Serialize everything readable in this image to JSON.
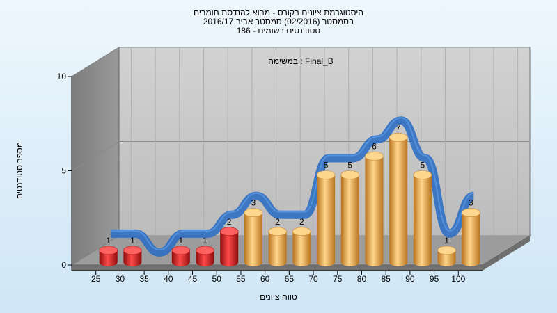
{
  "title": {
    "line1": "היסטוגרמת ציונים בקורס - מבוא להנדסת חומרים",
    "line2": "בסמסטר  (02/2016)  סמסטר אביב 2016/17",
    "line3": "סטודנטים רשומים - 186"
  },
  "chart_data": {
    "type": "bar",
    "title": "היסטוגרמת ציונים בקורס - מבוא להנדסת חומרים",
    "annotation": "במשימה : Final_B",
    "xlabel": "טווח ציונים",
    "ylabel": "מספר סטודנטים",
    "ylim": [
      0,
      10
    ],
    "yticks": [
      "0",
      "5",
      "10"
    ],
    "categories": [
      "25",
      "30",
      "35",
      "40",
      "45",
      "50",
      "55",
      "60",
      "65",
      "70",
      "75",
      "80",
      "85",
      "90",
      "95",
      "100"
    ],
    "values": [
      1,
      1,
      0,
      1,
      1,
      2,
      3,
      2,
      2,
      5,
      5,
      6,
      7,
      5,
      1,
      3
    ],
    "bar_colors": {
      "fail": "#d81e1e",
      "pass": "#e9a949"
    },
    "fail_threshold": 50,
    "curve_color": "#2f6fc4",
    "grid": true
  }
}
